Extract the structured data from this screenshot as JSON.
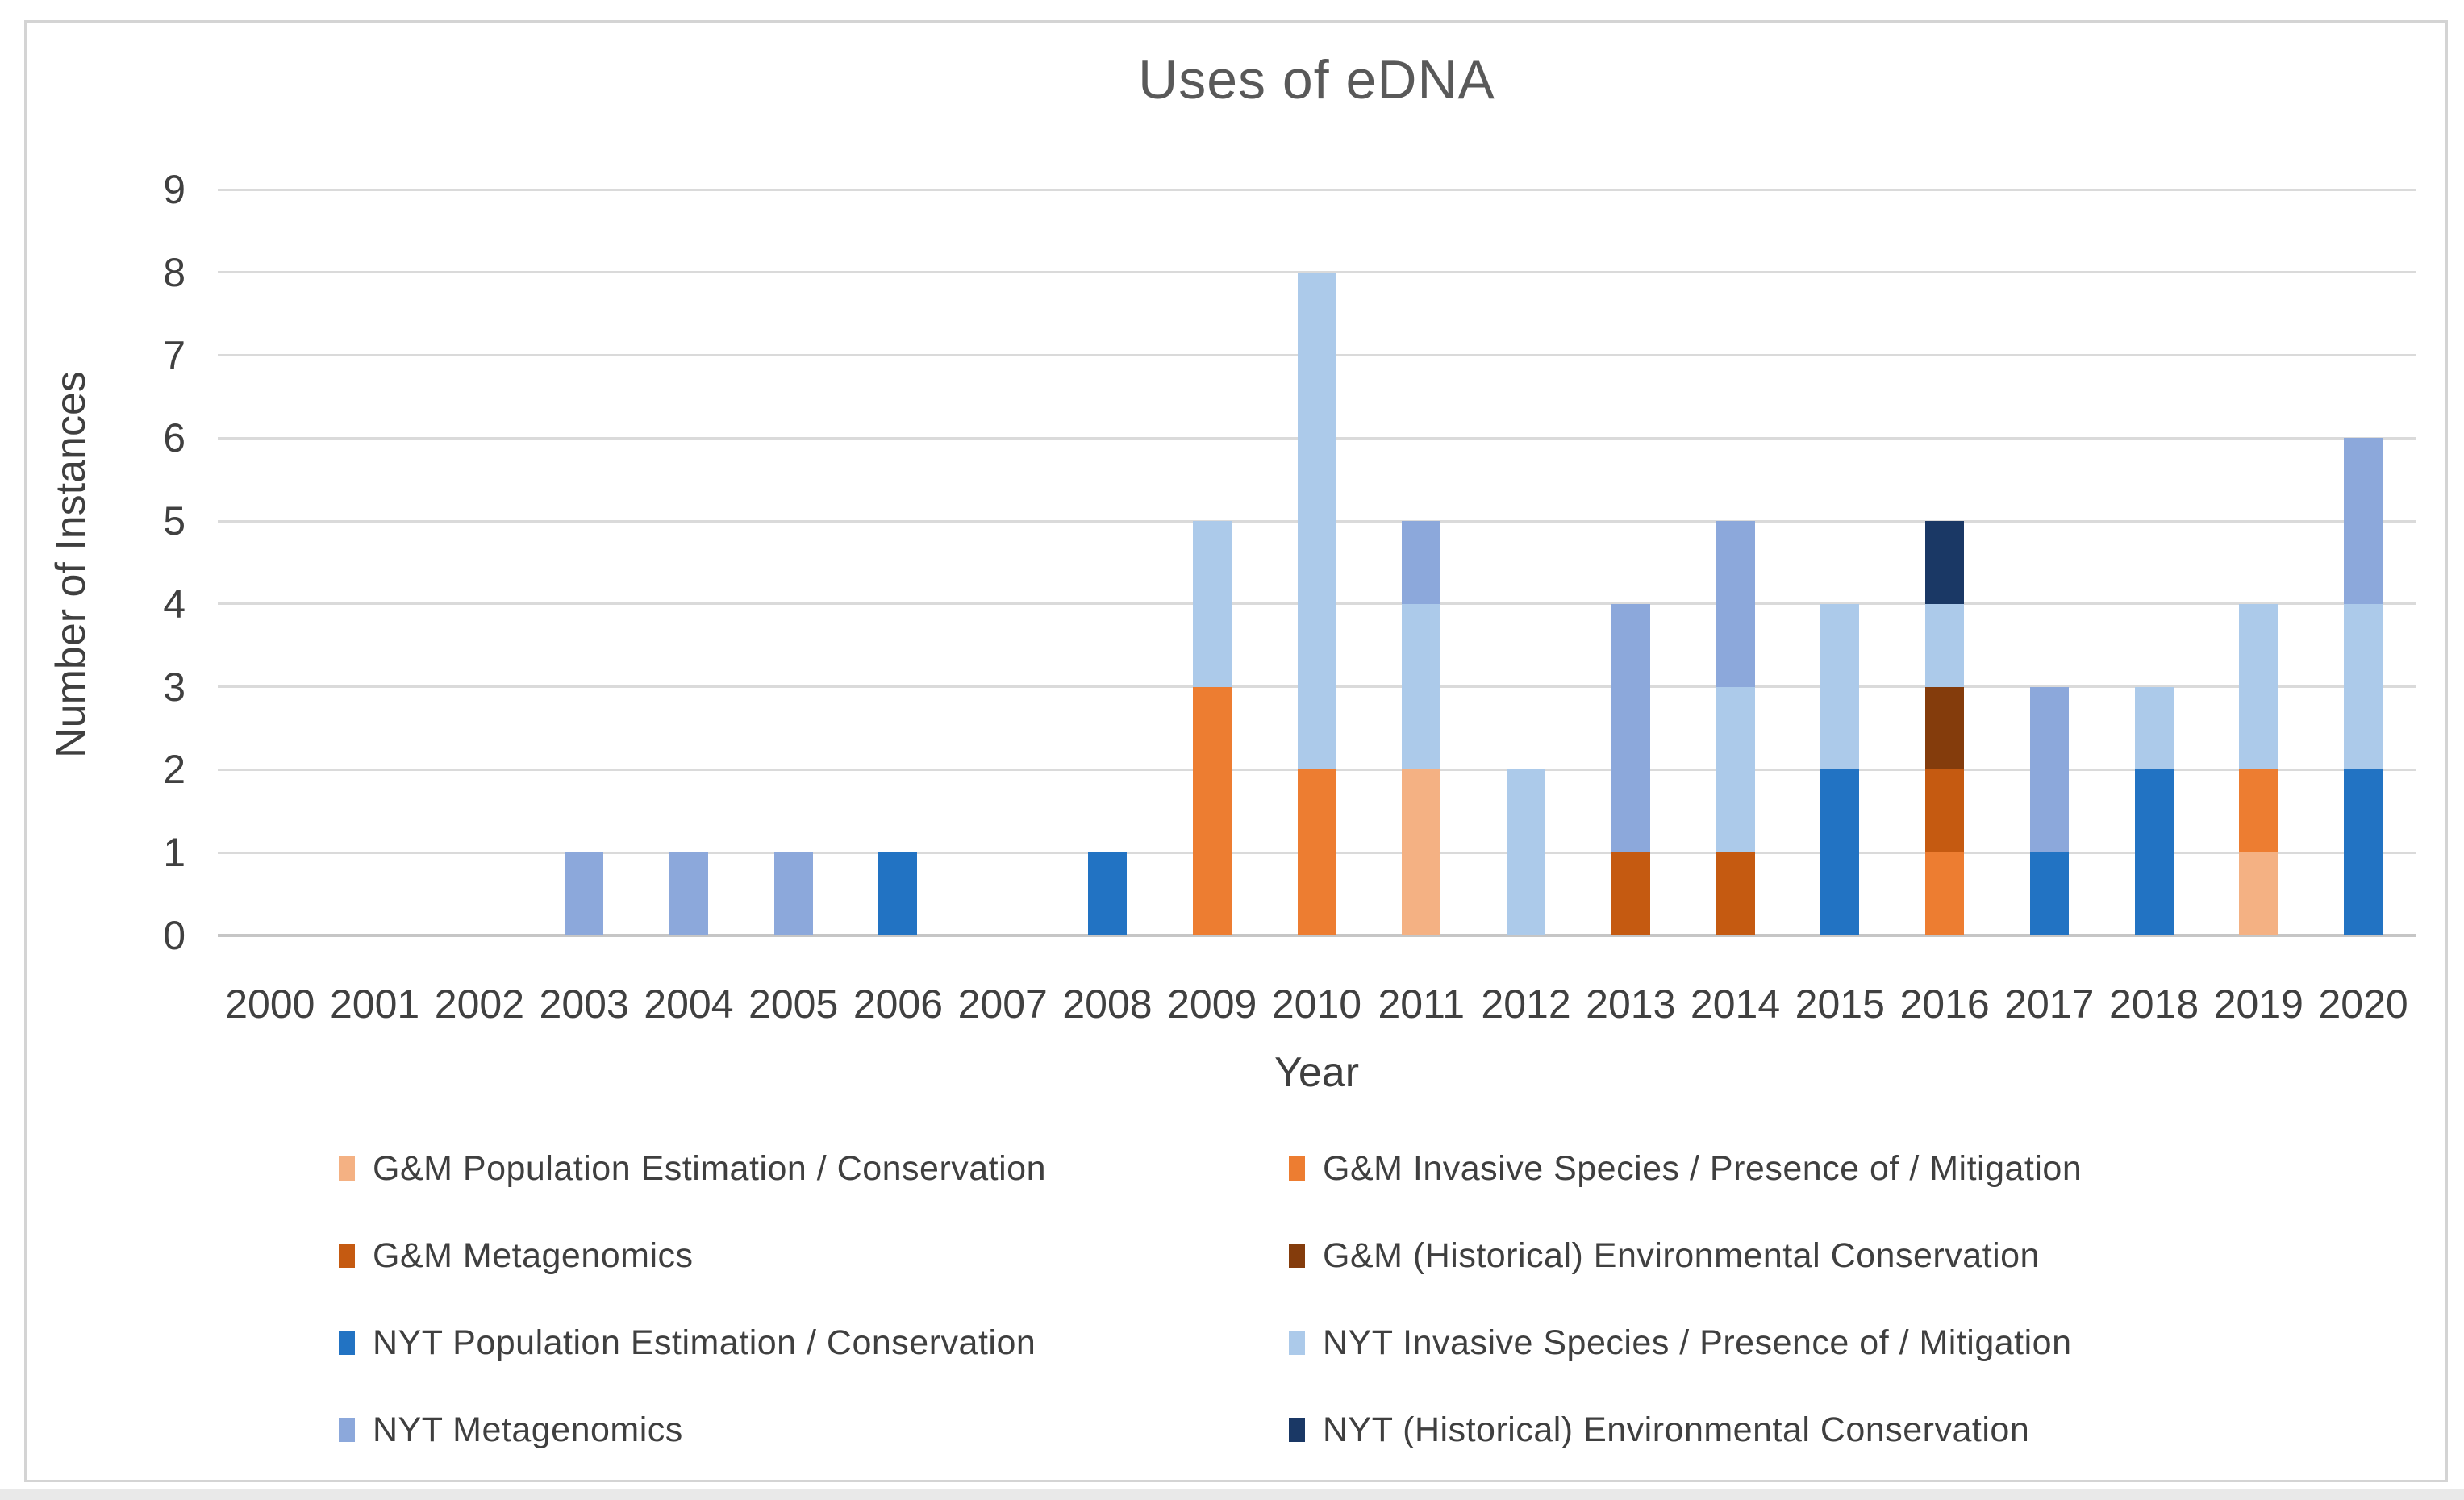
{
  "title": "Uses of eDNA",
  "y_axis": {
    "title": "Number of Instances",
    "min": 0,
    "max": 9,
    "tick_step": 1,
    "ticks": [
      "0",
      "1",
      "2",
      "3",
      "4",
      "5",
      "6",
      "7",
      "8",
      "9"
    ]
  },
  "x_axis": {
    "title": "Year"
  },
  "colors": {
    "title_text": "#595959",
    "axis_text": "#3F3F3F",
    "gridline": "#DADADA",
    "frame_border": "#D4D4D4"
  },
  "chart_data": {
    "type": "bar",
    "stacked": true,
    "title": "Uses of eDNA",
    "xlabel": "Year",
    "ylabel": "Number of Instances",
    "ylim": [
      0,
      9
    ],
    "grid": true,
    "legend_position": "bottom, two columns, row-major order",
    "categories": [
      "2000",
      "2001",
      "2002",
      "2003",
      "2004",
      "2005",
      "2006",
      "2007",
      "2008",
      "2009",
      "2010",
      "2011",
      "2012",
      "2013",
      "2014",
      "2015",
      "2016",
      "2017",
      "2018",
      "2019",
      "2020"
    ],
    "series": [
      {
        "name": "G&M Population Estimation / Conservation",
        "color": "#F4B183",
        "values": [
          0,
          0,
          0,
          0,
          0,
          0,
          0,
          0,
          0,
          0,
          0,
          2,
          0,
          0,
          0,
          0,
          0,
          0,
          0,
          1,
          0
        ]
      },
      {
        "name": "G&M Invasive Species / Presence of / Mitigation",
        "color": "#ED7D31",
        "values": [
          0,
          0,
          0,
          0,
          0,
          0,
          0,
          0,
          0,
          3,
          2,
          0,
          0,
          0,
          0,
          0,
          1,
          0,
          0,
          1,
          0
        ]
      },
      {
        "name": "G&M Metagenomics",
        "color": "#C55A11",
        "values": [
          0,
          0,
          0,
          0,
          0,
          0,
          0,
          0,
          0,
          0,
          0,
          0,
          0,
          1,
          1,
          0,
          1,
          0,
          0,
          0,
          0
        ]
      },
      {
        "name": "G&M (Historical) Environmental Conservation",
        "color": "#843C0C",
        "values": [
          0,
          0,
          0,
          0,
          0,
          0,
          0,
          0,
          0,
          0,
          0,
          0,
          0,
          0,
          0,
          0,
          1,
          0,
          0,
          0,
          0
        ]
      },
      {
        "name": "NYT Population Estimation / Conservation",
        "color": "#2273C3",
        "values": [
          0,
          0,
          0,
          0,
          0,
          0,
          1,
          0,
          1,
          0,
          0,
          0,
          0,
          0,
          0,
          2,
          0,
          1,
          2,
          0,
          2
        ]
      },
      {
        "name": "NYT Invasive Species / Presence of / Mitigation",
        "color": "#ACCAEA",
        "values": [
          0,
          0,
          0,
          0,
          0,
          0,
          0,
          0,
          0,
          2,
          6,
          2,
          2,
          0,
          2,
          2,
          1,
          0,
          1,
          2,
          2
        ]
      },
      {
        "name": "NYT Metagenomics",
        "color": "#8CA8DB",
        "values": [
          0,
          0,
          0,
          1,
          1,
          1,
          0,
          0,
          0,
          0,
          0,
          1,
          0,
          3,
          2,
          0,
          0,
          2,
          0,
          0,
          2
        ]
      },
      {
        "name": "NYT (Historical) Environmental Conservation",
        "color": "#1A3865",
        "values": [
          0,
          0,
          0,
          0,
          0,
          0,
          0,
          0,
          0,
          0,
          0,
          0,
          0,
          0,
          0,
          0,
          1,
          0,
          0,
          0,
          0
        ]
      }
    ]
  }
}
